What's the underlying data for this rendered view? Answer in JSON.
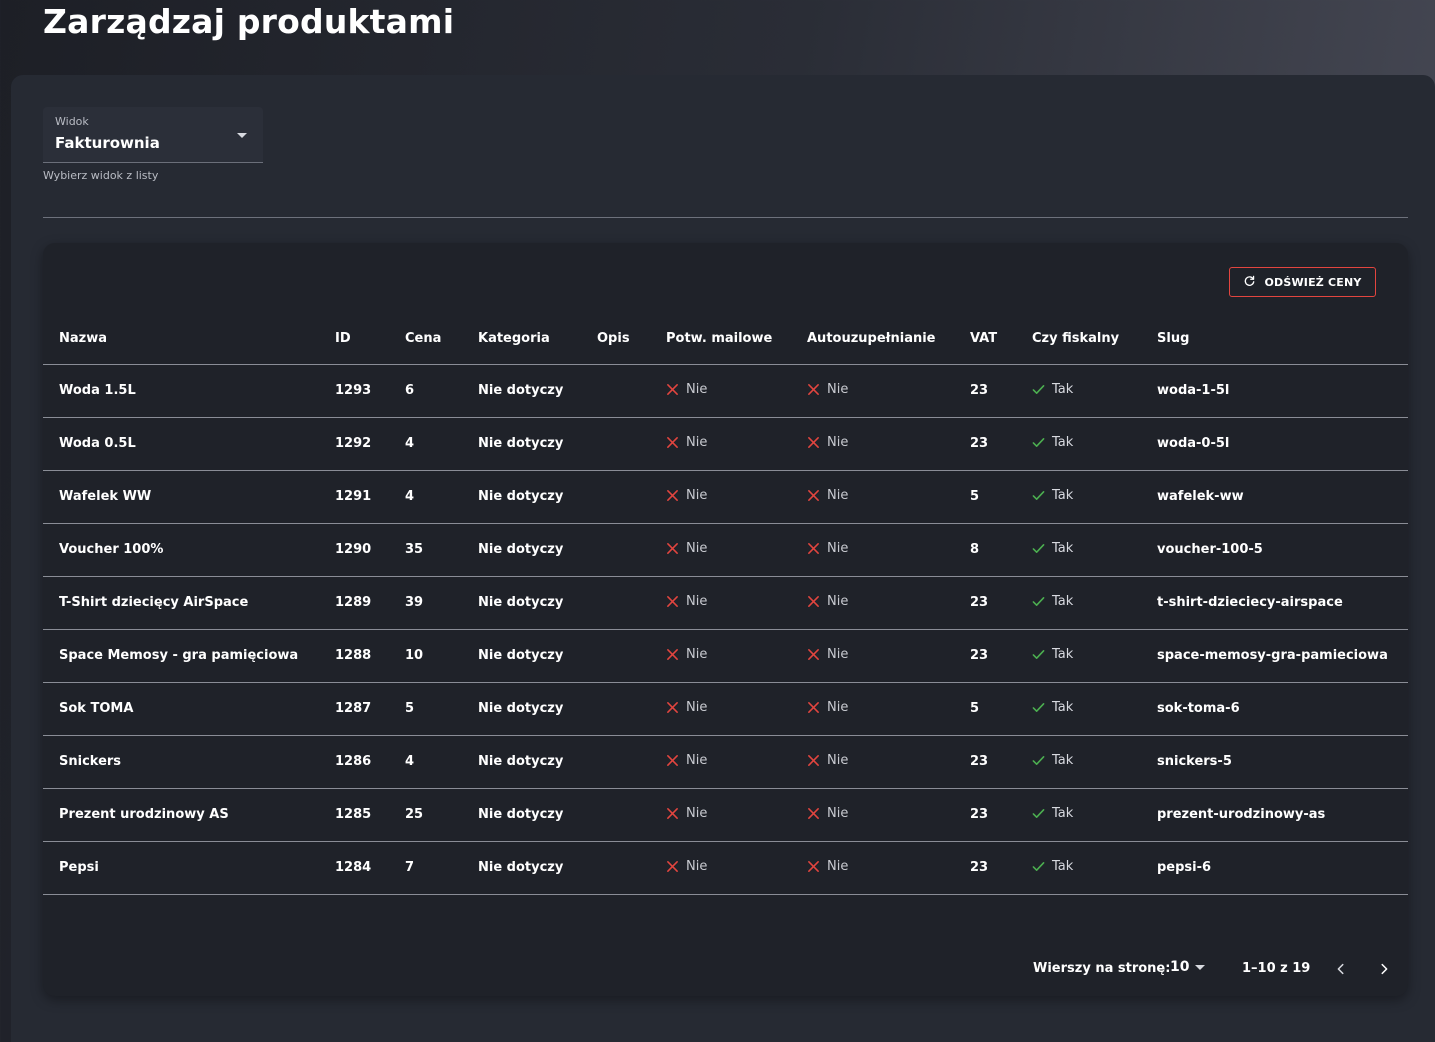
{
  "page": {
    "title": "Zarządzaj produktami"
  },
  "view_select": {
    "label": "Widok",
    "value": "Fakturownia",
    "helper": "Wybierz widok z listy"
  },
  "toolbar": {
    "refresh_label": "ODŚWIEŻ CENY",
    "refresh_icon": "refresh-icon"
  },
  "table": {
    "columns": [
      "Nazwa",
      "ID",
      "Cena",
      "Kategoria",
      "Opis",
      "Potw. mailowe",
      "Autouzupełnianie",
      "VAT",
      "Czy fiskalny",
      "Slug"
    ],
    "rows": [
      {
        "name": "Woda 1.5L",
        "id": "1293",
        "price": "6",
        "category": "Nie dotyczy",
        "description": "",
        "email_confirm": "Nie",
        "autofill": "Nie",
        "vat": "23",
        "fiscal": "Tak",
        "slug": "woda-1-5l"
      },
      {
        "name": "Woda 0.5L",
        "id": "1292",
        "price": "4",
        "category": "Nie dotyczy",
        "description": "",
        "email_confirm": "Nie",
        "autofill": "Nie",
        "vat": "23",
        "fiscal": "Tak",
        "slug": "woda-0-5l"
      },
      {
        "name": "Wafelek WW",
        "id": "1291",
        "price": "4",
        "category": "Nie dotyczy",
        "description": "",
        "email_confirm": "Nie",
        "autofill": "Nie",
        "vat": "5",
        "fiscal": "Tak",
        "slug": "wafelek-ww"
      },
      {
        "name": "Voucher 100%",
        "id": "1290",
        "price": "35",
        "category": "Nie dotyczy",
        "description": "",
        "email_confirm": "Nie",
        "autofill": "Nie",
        "vat": "8",
        "fiscal": "Tak",
        "slug": "voucher-100-5"
      },
      {
        "name": "T-Shirt dziecięcy AirSpace",
        "id": "1289",
        "price": "39",
        "category": "Nie dotyczy",
        "description": "",
        "email_confirm": "Nie",
        "autofill": "Nie",
        "vat": "23",
        "fiscal": "Tak",
        "slug": "t-shirt-dzieciecy-airspace"
      },
      {
        "name": "Space Memosy - gra pamięciowa",
        "id": "1288",
        "price": "10",
        "category": "Nie dotyczy",
        "description": "",
        "email_confirm": "Nie",
        "autofill": "Nie",
        "vat": "23",
        "fiscal": "Tak",
        "slug": "space-memosy-gra-pamieciowa"
      },
      {
        "name": "Sok TOMA",
        "id": "1287",
        "price": "5",
        "category": "Nie dotyczy",
        "description": "",
        "email_confirm": "Nie",
        "autofill": "Nie",
        "vat": "5",
        "fiscal": "Tak",
        "slug": "sok-toma-6"
      },
      {
        "name": "Snickers",
        "id": "1286",
        "price": "4",
        "category": "Nie dotyczy",
        "description": "",
        "email_confirm": "Nie",
        "autofill": "Nie",
        "vat": "23",
        "fiscal": "Tak",
        "slug": "snickers-5"
      },
      {
        "name": "Prezent urodzinowy AS",
        "id": "1285",
        "price": "25",
        "category": "Nie dotyczy",
        "description": "",
        "email_confirm": "Nie",
        "autofill": "Nie",
        "vat": "23",
        "fiscal": "Tak",
        "slug": "prezent-urodzinowy-as"
      },
      {
        "name": "Pepsi",
        "id": "1284",
        "price": "7",
        "category": "Nie dotyczy",
        "description": "",
        "email_confirm": "Nie",
        "autofill": "Nie",
        "vat": "23",
        "fiscal": "Tak",
        "slug": "pepsi-6"
      }
    ]
  },
  "pagination": {
    "rows_per_page_label": "Wierszy na stronę:",
    "rows_per_page": "10",
    "range": "1–10 z 19"
  },
  "colors": {
    "accent": "#e2453f",
    "check": "#4caf50",
    "cross": "#e2453f",
    "panel": "#262a33",
    "card": "#1f2229"
  }
}
